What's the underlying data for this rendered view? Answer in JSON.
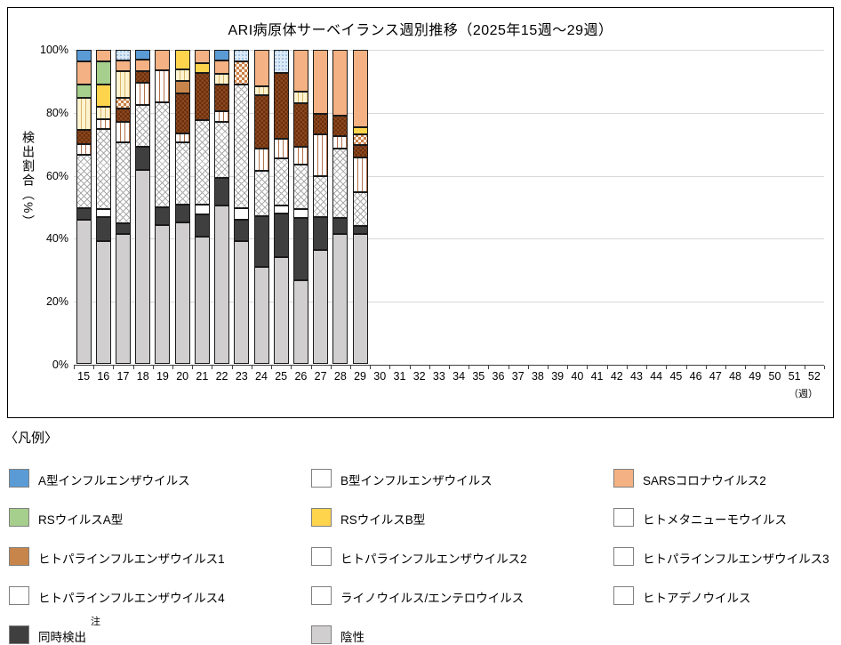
{
  "chart_data": {
    "type": "bar",
    "variant": "100%-stacked-column",
    "title": "ARI病原体サーベイランス週別推移（2025年15週～29週）",
    "ylabel": "検出割合（%）",
    "xlabel": "（週）",
    "ylim": [
      0,
      100
    ],
    "yticks": [
      "0%",
      "20%",
      "40%",
      "60%",
      "80%",
      "100%"
    ],
    "grid": "horizontal",
    "x_categories": [
      "15",
      "16",
      "17",
      "18",
      "19",
      "20",
      "21",
      "22",
      "23",
      "24",
      "25",
      "26",
      "27",
      "28",
      "29",
      "30",
      "31",
      "32",
      "33",
      "34",
      "35",
      "36",
      "37",
      "38",
      "39",
      "40",
      "41",
      "42",
      "43",
      "44",
      "45",
      "46",
      "47",
      "48",
      "49",
      "50",
      "51",
      "52"
    ],
    "weeks_with_data": [
      "15",
      "16",
      "17",
      "18",
      "19",
      "20",
      "21",
      "22",
      "23",
      "24",
      "25",
      "26",
      "27",
      "28",
      "29"
    ],
    "stack_order": "bottom-to-top",
    "series": [
      {
        "key": "negative",
        "name": "陰性",
        "pattern": "solid",
        "color": "#D0CECE",
        "values": [
          46.0,
          39.0,
          41.5,
          61.7,
          44.2,
          45.1,
          40.5,
          50.4,
          39.0,
          30.8,
          34.1,
          26.5,
          36.4,
          41.4,
          41.4
        ]
      },
      {
        "key": "codetect",
        "name": "同時検出",
        "pattern": "solid",
        "color": "#3F3F3F",
        "values": [
          3.6,
          7.7,
          3.3,
          7.5,
          5.8,
          5.7,
          7.2,
          8.9,
          6.8,
          16.2,
          13.9,
          19.9,
          10.4,
          5.2,
          2.5
        ]
      },
      {
        "key": "adeno",
        "name": "ヒトアデノウイルス",
        "pattern": "solid",
        "color": "#FFFFFF",
        "values": [
          0,
          2.5,
          0,
          0,
          0,
          0,
          3.1,
          0,
          3.8,
          0,
          2.4,
          3.0,
          0,
          0,
          0
        ]
      },
      {
        "key": "rhino",
        "name": "ライノウイルス/エンテロウイルス",
        "pattern": "crosshatch",
        "color": "#ABABAB",
        "values": [
          17.1,
          25.7,
          25.8,
          13.2,
          33.3,
          19.8,
          26.9,
          17.7,
          39.4,
          14.4,
          15.0,
          14.2,
          13.0,
          22.1,
          10.9
        ]
      },
      {
        "key": "piv4",
        "name": "ヒトパラインフルエンザウイルス4",
        "pattern": "vstripes",
        "color": "#B4714A",
        "values": [
          3.2,
          3.1,
          6.6,
          7.1,
          10.1,
          2.8,
          0,
          3.5,
          0,
          7.1,
          6.2,
          5.6,
          13.2,
          3.8,
          10.9
        ]
      },
      {
        "key": "piv3",
        "name": "ヒトパラインフルエンザウイルス3",
        "pattern": "checker-dark",
        "color": "#7C3A12",
        "values": [
          4.5,
          0,
          4.0,
          3.7,
          0,
          12.8,
          15.0,
          8.5,
          0,
          17.2,
          21.1,
          13.7,
          6.6,
          6.6,
          4.0
        ]
      },
      {
        "key": "piv2",
        "name": "ヒトパラインフルエンザウイルス2",
        "pattern": "checker-light",
        "color": "#C97E45",
        "values": [
          0,
          0,
          3.4,
          0,
          0,
          0,
          0,
          0,
          7.2,
          0,
          0,
          0,
          0,
          0,
          3.3
        ]
      },
      {
        "key": "piv1",
        "name": "ヒトパラインフルエンザウイルス1",
        "pattern": "solid",
        "color": "#C8854B",
        "values": [
          0,
          0,
          0,
          0,
          0,
          4.0,
          0,
          0,
          0,
          0,
          0,
          0,
          0,
          0,
          0
        ]
      },
      {
        "key": "hmpv",
        "name": "ヒトメタニューモウイルス",
        "pattern": "vstripes-pale",
        "color": "#FDF3D0",
        "values": [
          10.2,
          3.9,
          8.6,
          0,
          0,
          3.5,
          0,
          3.3,
          0,
          2.8,
          0,
          3.7,
          0,
          0,
          0
        ]
      },
      {
        "key": "rsb",
        "name": "RSウイルスB型",
        "pattern": "solid",
        "color": "#FFD44D",
        "values": [
          0,
          7.1,
          0,
          0,
          0,
          6.3,
          3.2,
          0,
          0,
          0,
          0,
          0,
          0,
          0,
          2.5
        ]
      },
      {
        "key": "rsa",
        "name": "RSウイルスA型",
        "pattern": "solid",
        "color": "#A6CE8C",
        "values": [
          4.4,
          7.3,
          0,
          0,
          0,
          0,
          0,
          0,
          0,
          0,
          0,
          0,
          0,
          0,
          0
        ]
      },
      {
        "key": "sars",
        "name": "SARSコロナウイルス2",
        "pattern": "solid",
        "color": "#F4B183",
        "values": [
          7.2,
          3.7,
          3.3,
          3.6,
          6.6,
          0,
          4.1,
          4.2,
          0,
          11.5,
          0,
          13.4,
          20.4,
          20.9,
          24.5
        ]
      },
      {
        "key": "flub",
        "name": "B型インフルエンザウイルス",
        "pattern": "dots",
        "color": "#DCE9F6",
        "values": [
          0,
          0,
          3.5,
          0,
          0,
          0,
          0,
          0,
          3.8,
          0,
          7.3,
          0,
          0,
          0,
          0
        ]
      },
      {
        "key": "flua",
        "name": "A型インフルエンザウイルス",
        "pattern": "solid",
        "color": "#5B9BD5",
        "values": [
          3.8,
          0,
          0,
          3.2,
          0,
          0,
          0,
          3.5,
          0,
          0,
          0,
          0,
          0,
          0,
          0
        ]
      }
    ]
  },
  "legend": {
    "title": "〈凡例〉",
    "note_mark": "注",
    "rows": [
      [
        "flua",
        "flub",
        "sars"
      ],
      [
        "rsa",
        "rsb",
        "hmpv"
      ],
      [
        "piv1",
        "piv2",
        "piv3"
      ],
      [
        "piv4",
        "rhino",
        "adeno"
      ],
      [
        "codetect",
        "negative"
      ]
    ],
    "note_on": "codetect"
  }
}
